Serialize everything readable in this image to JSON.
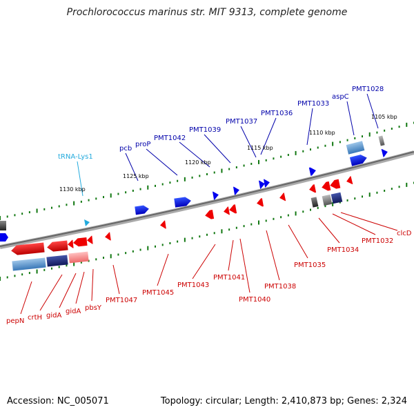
{
  "title": "Prochlorococcus marinus str. MIT 9313, complete genome",
  "footer": {
    "accession": "Accession: NC_005071",
    "topology": "Topology: circular; Length: 2,410,873 bp; Genes: 2,324"
  },
  "colors": {
    "forward": "#0000ee",
    "reverse": "#ee0000",
    "trna": "#22aadd",
    "backbone": "#888888",
    "ticks": "#117711"
  },
  "kbp_labels": [
    "1130 kbp",
    "1125 kbp",
    "1120 kbp",
    "1115 kbp",
    "1110 kbp",
    "1105 kbp"
  ],
  "forward_labels": [
    "pcb",
    "proP",
    "PMT1042",
    "PMT1039",
    "PMT1037",
    "PMT1036",
    "PMT1033",
    "aspC",
    "PMT1028"
  ],
  "trna_labels": [
    "tRNA-Lys1"
  ],
  "reverse_labels": [
    "pepN",
    "crtH",
    "gidA",
    "gidA",
    "pbsY",
    "PMT1047",
    "PMT1045",
    "PMT1043",
    "PMT1041",
    "PMT1040",
    "PMT1038",
    "PMT1035",
    "PMT1034",
    "PMT1032",
    "clcD"
  ]
}
